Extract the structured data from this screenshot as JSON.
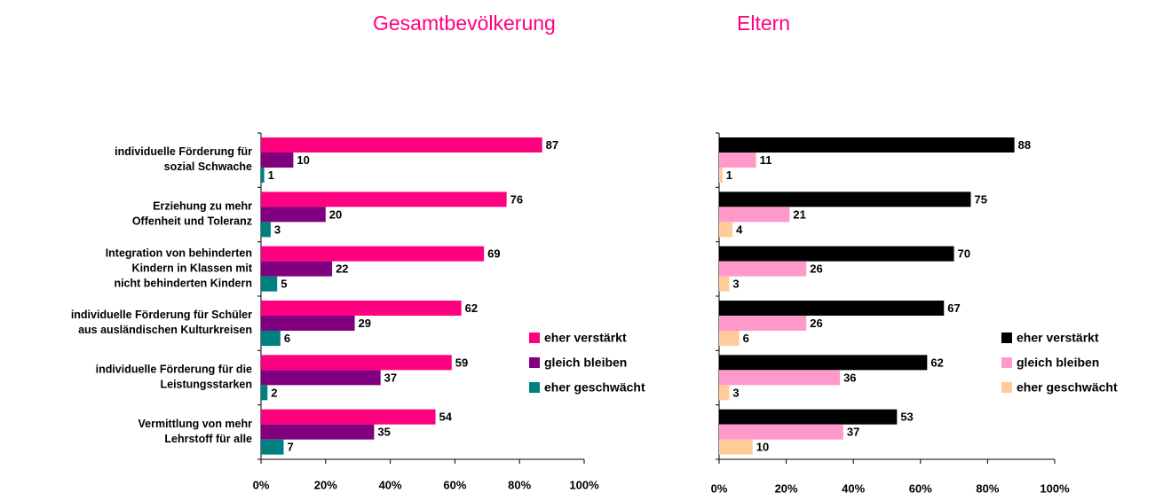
{
  "chart_data": [
    {
      "type": "bar",
      "title": "Gesamtbevölkerung",
      "categories": [
        "individuelle Förderung für\nsozial Schwache",
        "Erziehung zu mehr\nOffenheit und Toleranz",
        "Integration von behinderten\nKindern in Klassen mit\nnicht behinderten Kindern",
        "individuelle Förderung für Schüler\naus ausländischen Kulturkreisen",
        "individuelle Förderung für die\nLeistungsstarken",
        "Vermittlung von mehr\nLehrstoff für alle"
      ],
      "series": [
        {
          "name": "eher verstärkt",
          "color": "#ff0080",
          "values": [
            87,
            76,
            69,
            62,
            59,
            54
          ]
        },
        {
          "name": "gleich bleiben",
          "color": "#800080",
          "values": [
            10,
            20,
            22,
            29,
            37,
            35
          ]
        },
        {
          "name": "eher geschwächt",
          "color": "#008080",
          "values": [
            1,
            3,
            5,
            6,
            2,
            7
          ]
        }
      ],
      "xlim": [
        0,
        100
      ],
      "xticks": [
        {
          "value": 0,
          "label": "0%"
        },
        {
          "value": 20,
          "label": "20%"
        },
        {
          "value": 40,
          "label": "40%"
        },
        {
          "value": 60,
          "label": "60%"
        },
        {
          "value": 80,
          "label": "80%"
        },
        {
          "value": 100,
          "label": "100%"
        }
      ],
      "legend": "right"
    },
    {
      "type": "bar",
      "title": "Eltern",
      "series": [
        {
          "name": "eher verstärkt",
          "color": "#000000",
          "values": [
            88,
            75,
            70,
            67,
            62,
            53
          ]
        },
        {
          "name": "gleich bleiben",
          "color": "#ff99cc",
          "values": [
            11,
            21,
            26,
            26,
            36,
            37
          ]
        },
        {
          "name": "eher geschwächt",
          "color": "#ffcc99",
          "values": [
            1,
            4,
            3,
            6,
            3,
            10
          ]
        }
      ],
      "xlim": [
        0,
        100
      ],
      "xticks": [
        {
          "value": 0,
          "label": "0%"
        },
        {
          "value": 20,
          "label": "20%"
        },
        {
          "value": 40,
          "label": "40%"
        },
        {
          "value": 60,
          "label": "60%"
        },
        {
          "value": 80,
          "label": "80%"
        },
        {
          "value": 100,
          "label": "100%"
        }
      ],
      "legend": "right"
    }
  ]
}
